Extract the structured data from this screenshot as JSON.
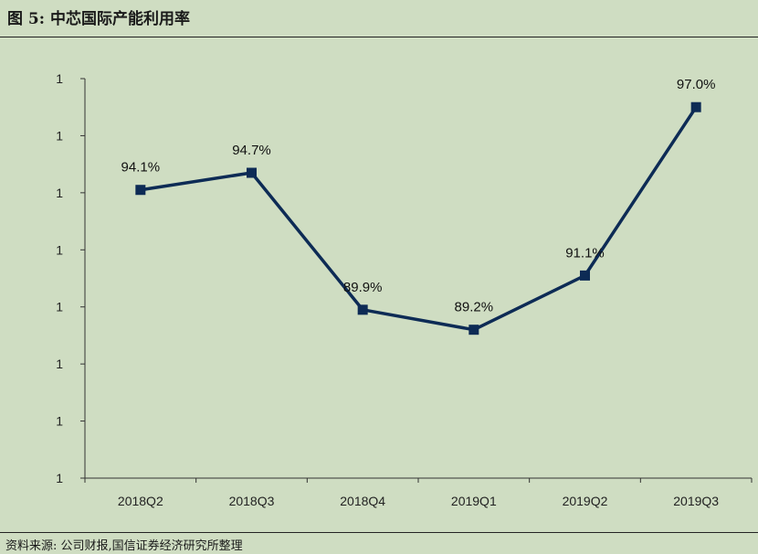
{
  "figure": {
    "title": "图 5:  中芯国际产能利用率",
    "source": "资料来源: 公司财报,国信证券经济研究所整理"
  },
  "chart_data": {
    "type": "line",
    "categories": [
      "2018Q2",
      "2018Q3",
      "2018Q4",
      "2019Q1",
      "2019Q2",
      "2019Q3"
    ],
    "series": [
      {
        "values": [
          94.1,
          94.7,
          89.9,
          89.2,
          91.1,
          97.0
        ],
        "data_labels": [
          "94.1%",
          "94.7%",
          "89.9%",
          "89.2%",
          "91.1%",
          "97.0%"
        ],
        "color": "#0d2b55",
        "marker": "square"
      }
    ],
    "y_tick_labels": [
      "1",
      "1",
      "1",
      "1",
      "1",
      "1",
      "1",
      "1"
    ],
    "ylim": [
      84,
      98
    ],
    "grid": false,
    "legend": "none"
  }
}
